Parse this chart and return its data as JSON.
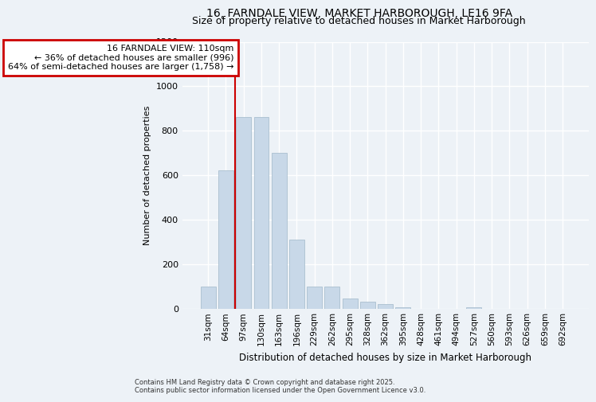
{
  "title": "16, FARNDALE VIEW, MARKET HARBOROUGH, LE16 9FA",
  "subtitle": "Size of property relative to detached houses in Market Harborough",
  "xlabel": "Distribution of detached houses by size in Market Harborough",
  "ylabel": "Number of detached properties",
  "footnote": "Contains HM Land Registry data © Crown copyright and database right 2025.\nContains public sector information licensed under the Open Government Licence v3.0.",
  "categories": [
    "31sqm",
    "64sqm",
    "97sqm",
    "130sqm",
    "163sqm",
    "196sqm",
    "229sqm",
    "262sqm",
    "295sqm",
    "328sqm",
    "362sqm",
    "395sqm",
    "428sqm",
    "461sqm",
    "494sqm",
    "527sqm",
    "560sqm",
    "593sqm",
    "626sqm",
    "659sqm",
    "692sqm"
  ],
  "values": [
    100,
    620,
    860,
    860,
    700,
    310,
    100,
    100,
    45,
    30,
    20,
    5,
    0,
    0,
    0,
    5,
    0,
    0,
    0,
    0,
    0
  ],
  "bar_color": "#c8d8e8",
  "bar_edge_color": "#aabfcf",
  "vline_x": 1.5,
  "vline_color": "#cc0000",
  "annotation_text": "16 FARNDALE VIEW: 110sqm\n← 36% of detached houses are smaller (996)\n64% of semi-detached houses are larger (1,758) →",
  "annotation_box_color": "#cc0000",
  "ylim": [
    0,
    1200
  ],
  "background_color": "#edf2f7",
  "plot_background": "#edf2f7",
  "grid_color": "#ffffff",
  "title_fontsize": 10,
  "subtitle_fontsize": 9
}
